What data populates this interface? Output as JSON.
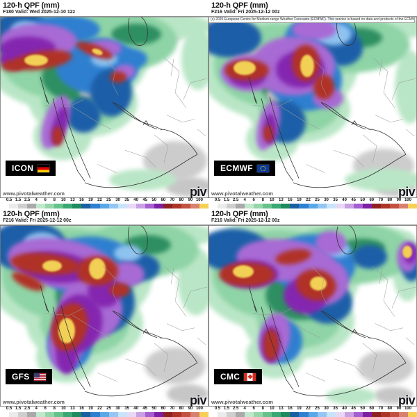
{
  "panels": [
    {
      "model": "ICON",
      "title": "120-h QPF (mm)",
      "subtitle": "F180 Valid: Wed 2025-12-10 12z",
      "flag": "germany",
      "watermark": "www.pivotalweather.com",
      "logo_partial": "piv",
      "copyright": ""
    },
    {
      "model": "ECMWF",
      "title": "120-h QPF (mm)",
      "subtitle": "F216 Valid: Fri 2025-12-12 00z",
      "flag": "european-union",
      "watermark": "www.pivotalweather.com",
      "logo_partial": "piv",
      "copyright": "(c) 2025 European Centre for Medium-range Weather Forecasts (ECMWF). This service is based on data and products of the ECMWF."
    },
    {
      "model": "GFS",
      "title": "120-h QPF (mm)",
      "subtitle": "F216 Valid: Fri 2025-12-12 00z",
      "flag": "united-states",
      "watermark": "www.pivotalweather.com",
      "logo_partial": "piv",
      "copyright": ""
    },
    {
      "model": "CMC",
      "title": "120-h QPF (mm)",
      "subtitle": "F216 Valid: Fri 2025-12-12 00z",
      "flag": "canada",
      "watermark": "www.pivotalweather.com",
      "logo_partial": "piv",
      "copyright": ""
    }
  ],
  "colorbar": {
    "unit": "mm",
    "labels": [
      "0.5",
      "1.5",
      "2.5",
      "4",
      "6",
      "8",
      "10",
      "13",
      "16",
      "19",
      "22",
      "25",
      "30",
      "35",
      "40",
      "45",
      "50",
      "60",
      "70",
      "80",
      "90",
      "100"
    ],
    "colors": [
      "#ffffff",
      "#ebebeb",
      "#cfcfcf",
      "#a9a9a9",
      "#c2e8cb",
      "#94d6a9",
      "#65c28b",
      "#3aa873",
      "#1f8a5d",
      "#1c5fa0",
      "#2f7fd0",
      "#5aa7e8",
      "#93c6f2",
      "#c9e4fa",
      "#e6d9f4",
      "#c9a0e4",
      "#a45ed0",
      "#7c1fa5",
      "#8f2020",
      "#ad3528",
      "#c25140",
      "#d8806f",
      "#f4d054"
    ]
  },
  "map_region": "Middle East / Arabian Peninsula"
}
